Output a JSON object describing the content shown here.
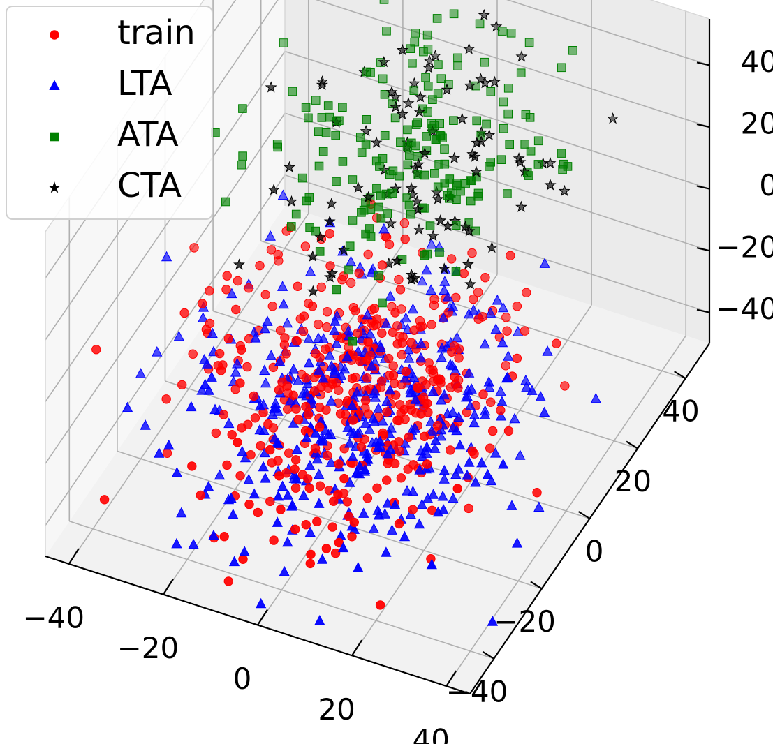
{
  "chart_data": {
    "type": "scatter",
    "projection": "3d",
    "title": "",
    "xlabel": "",
    "ylabel": "",
    "zlabel": "",
    "xlim": [
      -45,
      45
    ],
    "ylim": [
      -50,
      50
    ],
    "zlim": [
      -50,
      55
    ],
    "x_ticks": [
      -40,
      -20,
      0,
      20,
      40
    ],
    "y_ticks": [
      -40,
      -20,
      0,
      20,
      40
    ],
    "z_ticks": [
      -40,
      -20,
      0,
      20,
      40
    ],
    "x_tick_labels": [
      "−40",
      "−20",
      "0",
      "20",
      "40"
    ],
    "y_tick_labels": [
      "−40",
      "−20",
      "0",
      "20",
      "40"
    ],
    "z_tick_labels": [
      "−40",
      "−20",
      "0",
      "20",
      "40"
    ],
    "grid": true,
    "legend_position": "top-left",
    "series": [
      {
        "name": "train",
        "marker": "circle",
        "color": "#ff0000",
        "count": 420,
        "center": [
          0,
          -10,
          -18
        ],
        "spread": [
          15,
          16,
          13
        ]
      },
      {
        "name": "LTA",
        "marker": "triangle",
        "color": "#0000ff",
        "count": 420,
        "center": [
          3,
          -12,
          -22
        ],
        "spread": [
          16,
          17,
          13
        ]
      },
      {
        "name": "ATA",
        "marker": "square",
        "color": "#008000",
        "count": 190,
        "center": [
          -2,
          18,
          22
        ],
        "spread": [
          12,
          14,
          11
        ]
      },
      {
        "name": "CTA",
        "marker": "star",
        "color": "#000000",
        "count": 95,
        "center": [
          0,
          20,
          20
        ],
        "spread": [
          13,
          15,
          12
        ]
      }
    ]
  }
}
